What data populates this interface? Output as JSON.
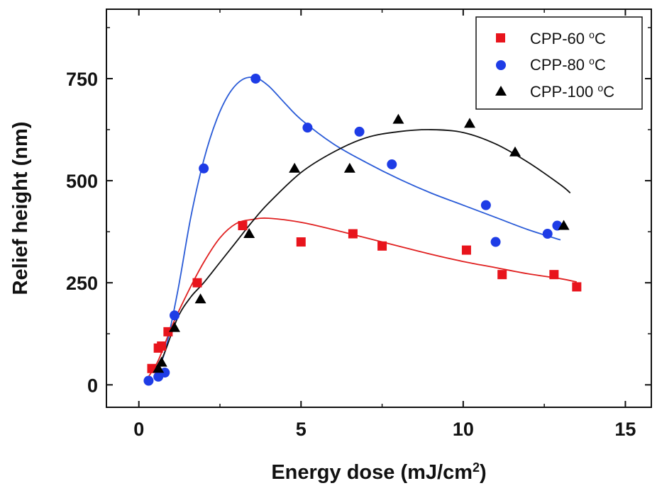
{
  "chart_data": {
    "type": "scatter",
    "title": "",
    "xlabel": "Energy dose (mJ/cm",
    "xlabel_sup": "2",
    "xlabel_end": ")",
    "ylabel": "Relief height (nm)",
    "xlim": [
      -1.0,
      15.8
    ],
    "ylim": [
      -55,
      920
    ],
    "xticks": [
      0,
      5,
      10,
      15
    ],
    "xtick_labels": [
      "0",
      "5",
      "10",
      "15"
    ],
    "yticks": [
      0,
      250,
      500,
      750
    ],
    "ytick_labels": [
      "0",
      "250",
      "500",
      "750"
    ],
    "grid": false,
    "legend_position": "top-right",
    "series": [
      {
        "name": "CPP-60",
        "legend_label": "CPP-60 ",
        "legend_sup": "o",
        "legend_end": "C",
        "marker": "square",
        "color": "#e8141c",
        "line_color": "#e02020",
        "x": [
          0.4,
          0.6,
          0.7,
          0.9,
          1.8,
          3.2,
          5.0,
          6.6,
          7.5,
          10.1,
          11.2,
          12.8,
          13.5
        ],
        "y": [
          40,
          90,
          95,
          130,
          250,
          390,
          350,
          370,
          340,
          330,
          270,
          270,
          240
        ],
        "fit_x": [
          0.3,
          0.6,
          1.0,
          1.5,
          2.0,
          2.5,
          3.0,
          3.5,
          4.0,
          5.0,
          6.0,
          7.0,
          8.0,
          9.0,
          10.0,
          11.0,
          12.0,
          13.0,
          13.5
        ],
        "fit_y": [
          20,
          60,
          140,
          225,
          300,
          360,
          395,
          405,
          408,
          398,
          380,
          360,
          340,
          320,
          302,
          287,
          272,
          260,
          252
        ]
      },
      {
        "name": "CPP-80",
        "legend_label": "CPP-80 ",
        "legend_sup": "o",
        "legend_end": "C",
        "marker": "circle",
        "color": "#1e3ce6",
        "line_color": "#2a5bd7",
        "x": [
          0.3,
          0.6,
          0.8,
          1.1,
          2.0,
          3.6,
          5.2,
          6.8,
          7.8,
          10.7,
          11.0,
          12.6,
          12.9
        ],
        "y": [
          10,
          20,
          30,
          170,
          530,
          750,
          630,
          620,
          540,
          440,
          350,
          370,
          390
        ],
        "fit_x": [
          0.5,
          0.8,
          1.2,
          1.6,
          2.0,
          2.4,
          2.8,
          3.2,
          3.6,
          4.0,
          4.5,
          5.0,
          6.0,
          7.0,
          8.0,
          9.0,
          10.0,
          11.0,
          12.0,
          13.0
        ],
        "fit_y": [
          30,
          80,
          230,
          410,
          550,
          650,
          715,
          748,
          752,
          732,
          690,
          650,
          590,
          545,
          505,
          470,
          440,
          410,
          380,
          355
        ]
      },
      {
        "name": "CPP-100",
        "legend_label": "CPP-100 ",
        "legend_sup": "o",
        "legend_end": "C",
        "marker": "triangle",
        "color": "#000000",
        "line_color": "#111111",
        "x": [
          0.6,
          0.7,
          1.1,
          1.9,
          3.4,
          4.8,
          6.5,
          8.0,
          10.2,
          11.6,
          13.1
        ],
        "y": [
          40,
          55,
          140,
          210,
          370,
          530,
          530,
          650,
          640,
          570,
          390
        ],
        "fit_x": [
          0.5,
          0.8,
          1.2,
          1.6,
          2.0,
          2.5,
          3.0,
          3.5,
          4.0,
          5.0,
          6.0,
          7.0,
          8.0,
          9.0,
          10.0,
          11.0,
          12.0,
          13.0,
          13.3
        ],
        "fit_y": [
          25,
          80,
          165,
          215,
          250,
          300,
          350,
          400,
          445,
          520,
          570,
          605,
          620,
          625,
          618,
          590,
          545,
          490,
          470
        ]
      }
    ]
  }
}
